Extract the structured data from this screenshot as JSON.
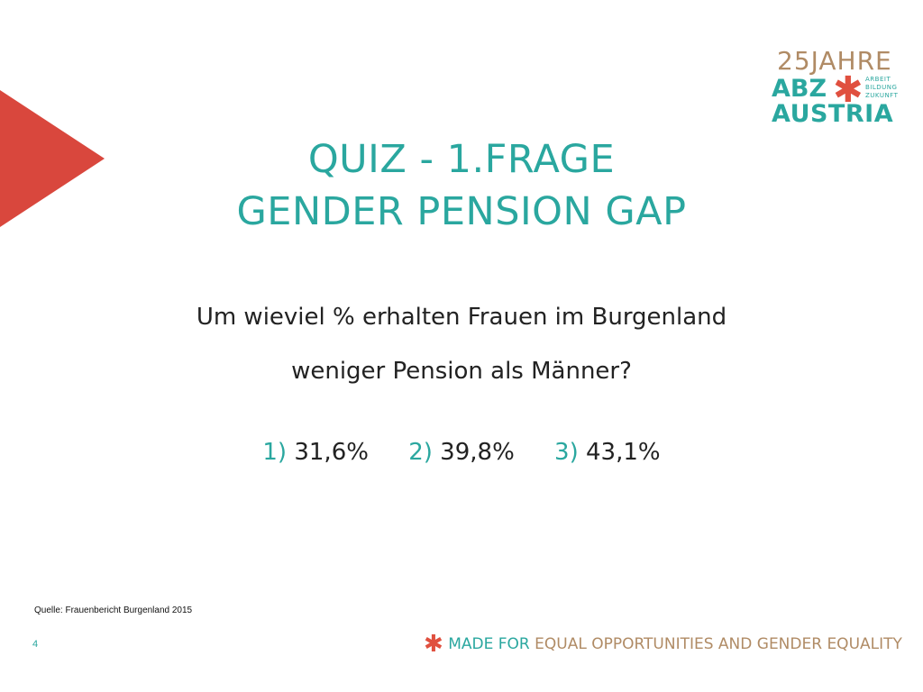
{
  "logo": {
    "anniversary": "25JAHRE",
    "abz": "ABZ",
    "star": "✱",
    "tagline": [
      "ARBEIT",
      "BILDUNG",
      "ZUKUNFT"
    ],
    "austria": "AUSTRIA"
  },
  "title": {
    "line1": "QUIZ - 1.FRAGE",
    "line2": "GENDER PENSION GAP"
  },
  "question": {
    "line1": "Um wieviel % erhalten Frauen im Burgenland",
    "line2": "weniger Pension als Männer?"
  },
  "answers": [
    {
      "number": "1)",
      "value": "31,6%"
    },
    {
      "number": "2)",
      "value": "39,8%"
    },
    {
      "number": "3)",
      "value": "43,1%"
    }
  ],
  "source": "Quelle: Frauenbericht Burgenland 2015",
  "page_number": "4",
  "footer": {
    "star": "✱",
    "made_for": "MADE FOR",
    "rest": "EQUAL OPPORTUNITIES AND GENDER EQUALITY"
  },
  "colors": {
    "accent": "#2aa79f",
    "triangle": "#d9473d",
    "star": "#e0503f",
    "gold": "#b08b65"
  }
}
